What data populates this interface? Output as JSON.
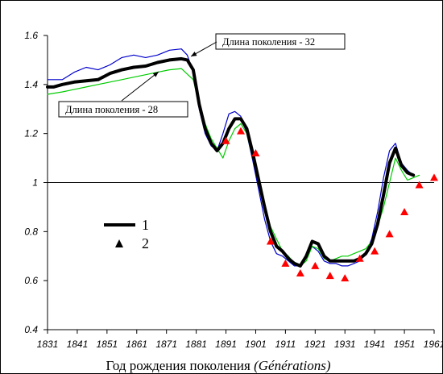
{
  "chart_data": {
    "type": "line",
    "xlim": [
      1831,
      1961
    ],
    "ylim": [
      0.4,
      1.6
    ],
    "x_ticks": [
      1831,
      1841,
      1851,
      1861,
      1871,
      1881,
      1891,
      1901,
      1911,
      1921,
      1931,
      1941,
      1951,
      1961
    ],
    "x_tick_labels": [
      "1831",
      "1841",
      "1851",
      "1861",
      "1871",
      "1881",
      "1891",
      "1901",
      "1911",
      "1921",
      "1931",
      "1941",
      "1951",
      "1961"
    ],
    "y_ticks": [
      0.4,
      0.6,
      0.8,
      1.0,
      1.2,
      1.4,
      1.6
    ],
    "y_tick_labels": [
      "0.4",
      "0.6",
      "0.8",
      "1",
      "1.2",
      "1.4",
      "1.6"
    ],
    "xlabel": "Год рождения поколения",
    "xlabel_italic": "(Générations)",
    "reference_line_y": 1.0,
    "legend": [
      {
        "label": "1",
        "marker": "thick-black-line"
      },
      {
        "label": "2",
        "marker": "black-triangle"
      }
    ],
    "annotations": [
      {
        "text": "Длина поколения - 32",
        "points_to": [
          1877,
          1.51
        ]
      },
      {
        "text": "Длина поколения - 28",
        "points_to": [
          1866,
          1.47
        ]
      }
    ],
    "series": [
      {
        "name": "1",
        "color": "#000000",
        "style": "thick",
        "x": [
          1831,
          1833,
          1836,
          1840,
          1844,
          1848,
          1852,
          1856,
          1860,
          1864,
          1868,
          1872,
          1876,
          1878,
          1880,
          1882,
          1884,
          1886,
          1888,
          1890,
          1892,
          1894,
          1896,
          1898,
          1900,
          1902,
          1904,
          1906,
          1908,
          1910,
          1912,
          1914,
          1916,
          1918,
          1920,
          1922,
          1924,
          1926,
          1928,
          1930,
          1932,
          1934,
          1936,
          1938,
          1940,
          1942,
          1944,
          1946,
          1948,
          1950,
          1952,
          1954
        ],
        "y": [
          1.39,
          1.39,
          1.4,
          1.41,
          1.415,
          1.42,
          1.445,
          1.46,
          1.47,
          1.475,
          1.49,
          1.5,
          1.505,
          1.5,
          1.46,
          1.32,
          1.22,
          1.16,
          1.13,
          1.16,
          1.22,
          1.26,
          1.26,
          1.22,
          1.12,
          1.01,
          0.9,
          0.8,
          0.74,
          0.72,
          0.69,
          0.67,
          0.66,
          0.7,
          0.76,
          0.75,
          0.7,
          0.68,
          0.68,
          0.68,
          0.68,
          0.68,
          0.69,
          0.71,
          0.75,
          0.83,
          0.95,
          1.08,
          1.14,
          1.07,
          1.04,
          1.03
        ]
      },
      {
        "name": "",
        "color": "#0000cc",
        "style": "thin",
        "x": [
          1831,
          1836,
          1840,
          1844,
          1848,
          1852,
          1856,
          1860,
          1864,
          1868,
          1872,
          1876,
          1878,
          1880,
          1882,
          1884,
          1886,
          1888,
          1890,
          1892,
          1894,
          1896,
          1898,
          1900,
          1902,
          1904,
          1906,
          1908,
          1910,
          1912,
          1914,
          1916,
          1918,
          1920,
          1922,
          1924,
          1926,
          1928,
          1930,
          1932,
          1934,
          1936,
          1938,
          1940,
          1942,
          1944,
          1946,
          1948,
          1950,
          1952,
          1954
        ],
        "y": [
          1.42,
          1.42,
          1.45,
          1.47,
          1.46,
          1.48,
          1.51,
          1.52,
          1.51,
          1.52,
          1.54,
          1.545,
          1.52,
          1.45,
          1.3,
          1.2,
          1.15,
          1.13,
          1.2,
          1.28,
          1.29,
          1.27,
          1.2,
          1.09,
          0.97,
          0.85,
          0.76,
          0.71,
          0.7,
          0.68,
          0.66,
          0.66,
          0.7,
          0.74,
          0.72,
          0.68,
          0.67,
          0.67,
          0.66,
          0.66,
          0.67,
          0.68,
          0.71,
          0.77,
          0.88,
          1.02,
          1.13,
          1.16,
          1.08,
          1.05,
          1.03
        ]
      },
      {
        "name": "",
        "color": "#00cc00",
        "style": "thin",
        "x": [
          1831,
          1836,
          1840,
          1844,
          1848,
          1852,
          1856,
          1860,
          1864,
          1868,
          1872,
          1876,
          1880,
          1882,
          1884,
          1886,
          1888,
          1890,
          1892,
          1894,
          1896,
          1898,
          1900,
          1902,
          1904,
          1906,
          1908,
          1910,
          1912,
          1914,
          1916,
          1918,
          1920,
          1922,
          1924,
          1926,
          1928,
          1930,
          1932,
          1934,
          1936,
          1938,
          1940,
          1942,
          1944,
          1946,
          1948,
          1950,
          1952,
          1954,
          1956
        ],
        "y": [
          1.36,
          1.37,
          1.38,
          1.39,
          1.4,
          1.41,
          1.42,
          1.43,
          1.44,
          1.45,
          1.46,
          1.465,
          1.42,
          1.32,
          1.24,
          1.18,
          1.14,
          1.1,
          1.17,
          1.22,
          1.24,
          1.2,
          1.1,
          1.0,
          0.9,
          0.82,
          0.77,
          0.72,
          0.7,
          0.67,
          0.66,
          0.68,
          0.74,
          0.73,
          0.69,
          0.68,
          0.69,
          0.7,
          0.7,
          0.71,
          0.72,
          0.73,
          0.76,
          0.82,
          0.9,
          1.0,
          1.1,
          1.05,
          1.01,
          1.02,
          1.03
        ]
      },
      {
        "name": "2",
        "color": "#ff0000",
        "style": "triangle",
        "x": [
          1891,
          1896,
          1901,
          1906,
          1911,
          1916,
          1921,
          1926,
          1931,
          1936,
          1941,
          1946,
          1951,
          1956,
          1961
        ],
        "y": [
          1.17,
          1.21,
          1.12,
          0.76,
          0.67,
          0.63,
          0.66,
          0.62,
          0.61,
          0.69,
          0.72,
          0.79,
          0.88,
          0.99,
          1.02
        ]
      }
    ]
  }
}
